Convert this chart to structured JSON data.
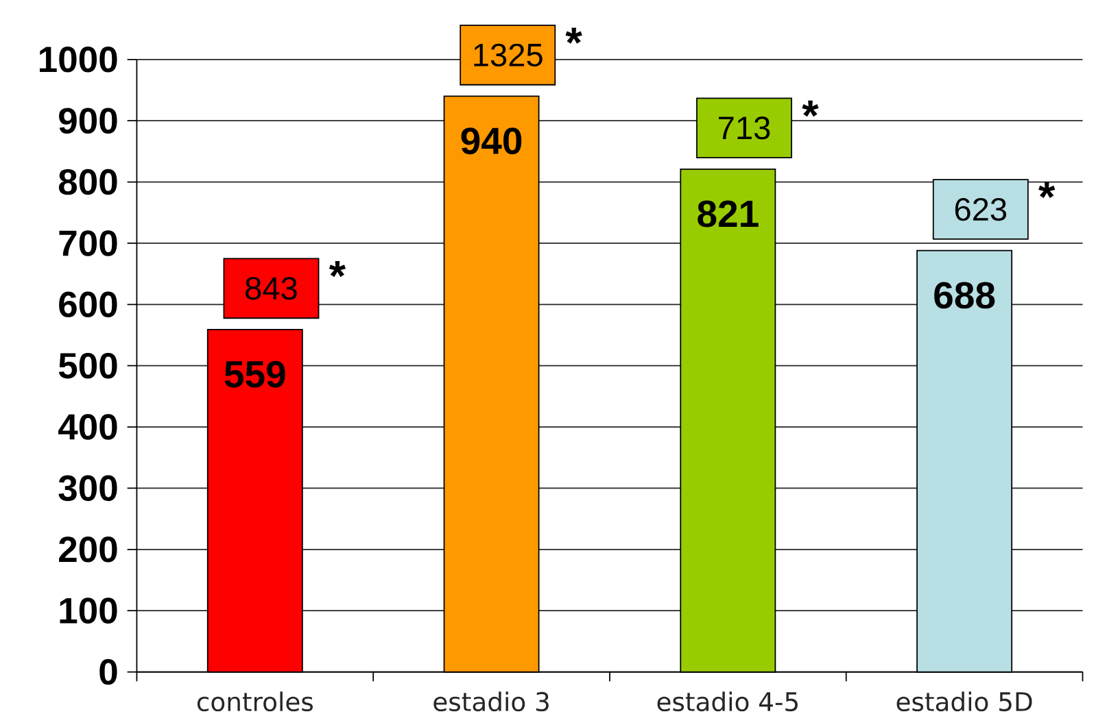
{
  "chart_data": {
    "type": "bar",
    "categories": [
      "controles",
      "estadio 3",
      "estadio 4-5",
      "estadio 5D"
    ],
    "values": [
      559,
      940,
      821,
      688
    ],
    "colors": [
      "#ff0000",
      "#ff9900",
      "#99cc00",
      "#b8dfe3"
    ],
    "ylim": [
      0,
      1000
    ],
    "yticks": [
      0,
      100,
      200,
      300,
      400,
      500,
      600,
      700,
      800,
      900,
      1000
    ],
    "grid": "y",
    "data_labels": true,
    "annotations": [
      {
        "text": "843",
        "x": "controles",
        "y": 559
      },
      "*",
      {
        "text": "1325",
        "x": "estadio 3",
        "y": 940
      },
      "*",
      {
        "text": "713",
        "x": "estadio 4-5",
        "y": 821
      },
      "*",
      {
        "text": "623",
        "x": "estadio 5D",
        "y": 688
      },
      "*"
    ]
  }
}
